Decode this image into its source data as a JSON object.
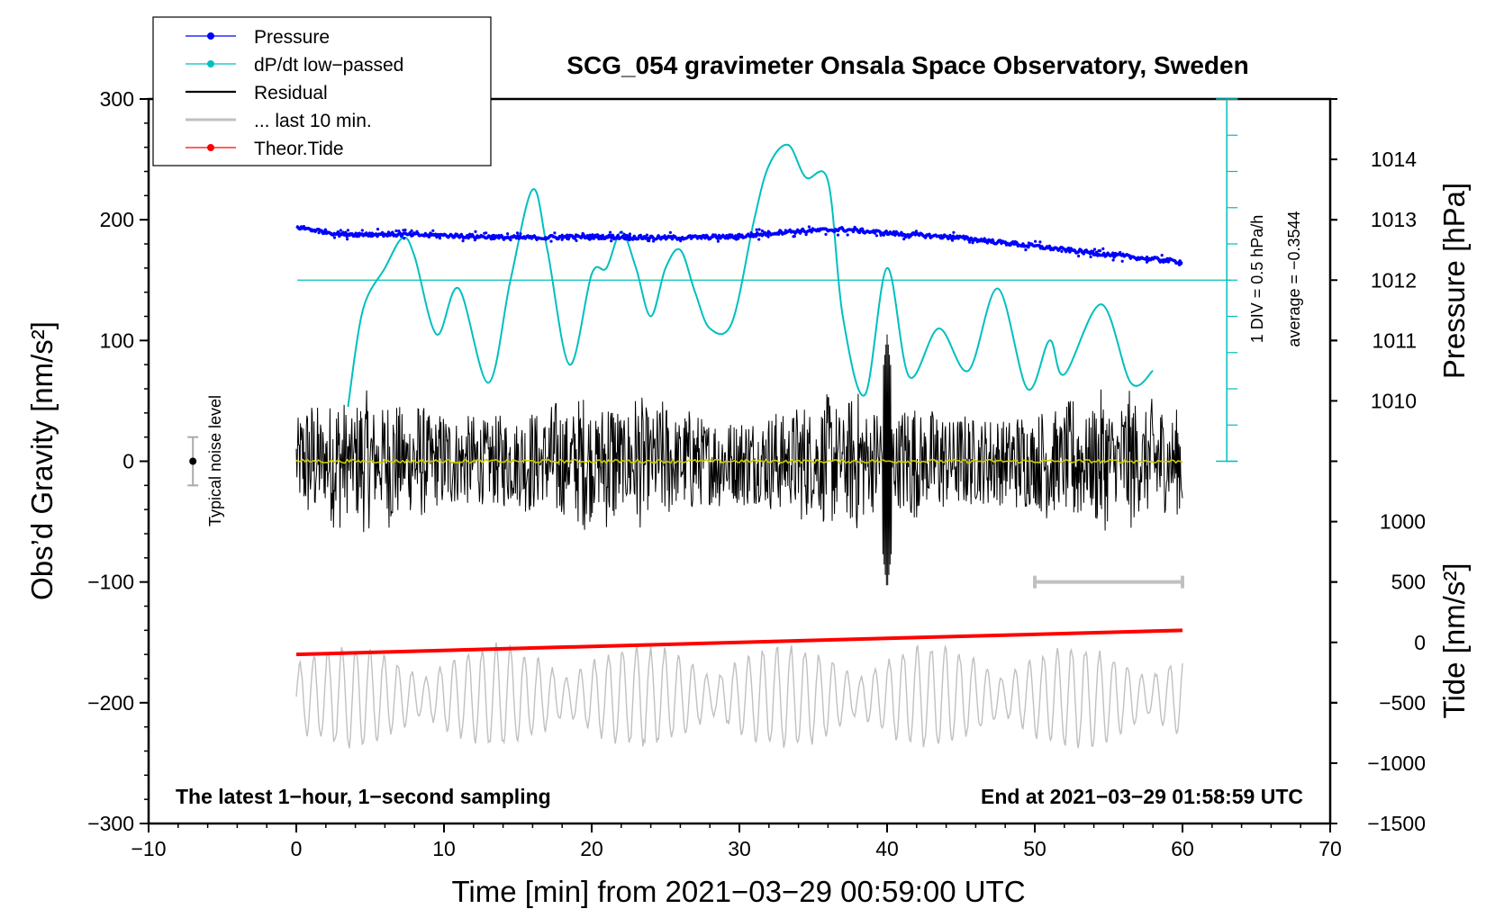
{
  "chart_data": {
    "type": "line",
    "title": "SCG_054 gravimeter Onsala Space Observatory, Sweden",
    "xlabel": "Time [min] from 2021−03−29 00:59:00 UTC",
    "ylabel_left": "Obs’d Gravity [nm/s²]",
    "ylabel_right_top": "Pressure [hPa]",
    "ylabel_right_bottom": "Tide [nm/s²]",
    "xlim": [
      -10,
      70
    ],
    "ylim": [
      -300,
      300
    ],
    "x_ticks": [
      -10,
      0,
      10,
      20,
      30,
      40,
      50,
      60,
      70
    ],
    "x_tick_labels": [
      "−10",
      "0",
      "10",
      "20",
      "30",
      "40",
      "50",
      "60",
      "70"
    ],
    "y_ticks": [
      300,
      200,
      100,
      0,
      -100,
      -200,
      -300
    ],
    "y_tick_labels": [
      "300",
      "200",
      "100",
      "0",
      "−100",
      "−200",
      "−300"
    ],
    "pressure_axis": {
      "ticks": [
        1010,
        1011,
        1012,
        1013,
        1014
      ],
      "tick_labels": [
        "1010",
        "1011",
        "1012",
        "1013",
        "1014"
      ],
      "gravity_at_1010": 50,
      "gravity_per_hpa": 50
    },
    "tide_axis": {
      "ticks": [
        1000,
        500,
        0,
        -500,
        -1000,
        -1500
      ],
      "tick_labels": [
        "1000",
        "500",
        "0",
        "−500",
        "−1000",
        "−1500"
      ],
      "gravity_at_0": -150,
      "gravity_per_nm": 0.1
    },
    "dpdt_scale": {
      "label_div": "1 DIV = 0.5 hPa/h",
      "label_avg": "average = −0.3544",
      "baseline_gravity": 150,
      "bar_top_gravity": 300,
      "bar_bottom_gravity": 0,
      "bar_x": 63,
      "div_gravity": 30
    },
    "noise_marker": {
      "label": "Typical noise level",
      "x": -7,
      "center": 0,
      "range": [
        -20,
        20
      ]
    },
    "last10_marker": {
      "x_range": [
        50,
        60
      ],
      "gravity": -100
    },
    "series": [
      {
        "name": "Pressure",
        "color": "#0000ff",
        "axis": "pressure",
        "x": [
          0,
          3,
          6,
          10,
          15,
          20,
          25,
          30,
          33,
          37,
          40,
          45,
          50,
          55,
          60
        ],
        "values": [
          1012.88,
          1012.76,
          1012.76,
          1012.74,
          1012.7,
          1012.72,
          1012.7,
          1012.72,
          1012.8,
          1012.84,
          1012.78,
          1012.7,
          1012.56,
          1012.42,
          1012.3
        ]
      },
      {
        "name": "dP/dt low−passed",
        "color": "#00bfbf",
        "axis": "gravity",
        "x": [
          3.5,
          4.5,
          6,
          7.2,
          8,
          9.5,
          11,
          13,
          14.5,
          16,
          17,
          18.5,
          20,
          21,
          22,
          23,
          24,
          25,
          26,
          27,
          28,
          29.5,
          31,
          32,
          33.3,
          34.5,
          36,
          37,
          38.5,
          40,
          41.5,
          43.5,
          45.5,
          47.5,
          49.5,
          51,
          52,
          54.5,
          56.5,
          58
        ],
        "values": [
          45,
          125,
          160,
          185,
          170,
          105,
          143,
          65,
          150,
          225,
          175,
          80,
          155,
          160,
          190,
          160,
          120,
          160,
          175,
          140,
          110,
          115,
          200,
          245,
          262,
          235,
          232,
          120,
          55,
          160,
          70,
          110,
          75,
          143,
          60,
          100,
          72,
          130,
          65,
          75
        ]
      },
      {
        "name": "Residual",
        "color": "#000000",
        "axis": "gravity",
        "x_range": [
          0,
          60
        ],
        "envelope": 60,
        "peak": {
          "x": 40,
          "max": 105,
          "min": -107
        }
      },
      {
        "name": "... last 10 min.",
        "color": "#c0c0c0",
        "axis": "gravity",
        "x_range": [
          0,
          60
        ],
        "center": -195,
        "envelope": 45
      },
      {
        "name": "Theor.Tide",
        "color": "#ff0000",
        "axis": "tide",
        "x": [
          0,
          60
        ],
        "values": [
          -100,
          100
        ]
      },
      {
        "name": "Residual mean",
        "color": "#cccc00",
        "axis": "gravity",
        "x_range": [
          0,
          60
        ],
        "center": 0
      }
    ],
    "legend": {
      "position": "top-left",
      "entries": [
        "Pressure",
        "dP/dt low−passed",
        "Residual",
        "... last 10 min.",
        "Theor.Tide"
      ]
    },
    "annotations": {
      "bottom_left": "The latest 1−hour, 1−second sampling",
      "bottom_right": "End at 2021−03−29 01:58:59 UTC"
    }
  }
}
